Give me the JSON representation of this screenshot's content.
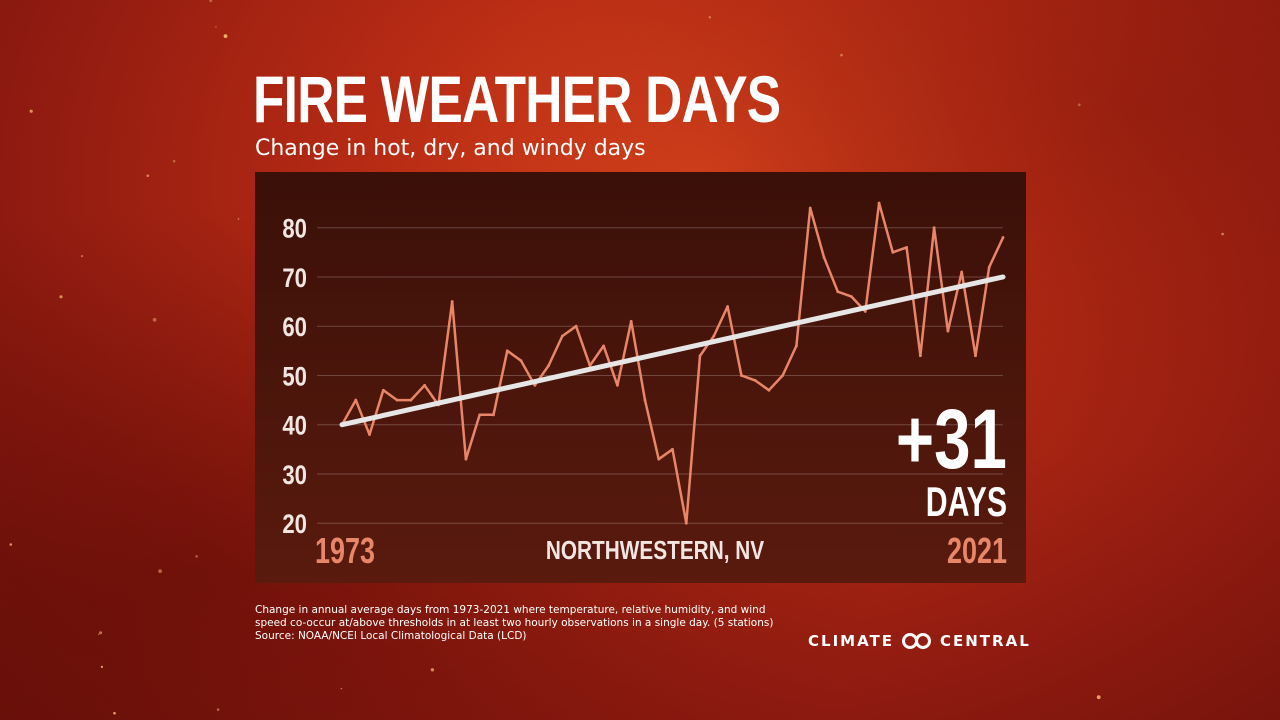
{
  "title": "FIRE WEATHER DAYS",
  "subtitle": "Change in hot, dry, and windy days",
  "colors": {
    "panel_top": "#3a1008",
    "panel_bottom": "#5a1a0e",
    "series_line": "#e8866a",
    "trend_line": "#e6e6e6",
    "year_label": "#e8866a",
    "text": "#ffffff"
  },
  "chart_data": {
    "type": "line",
    "title": "FIRE WEATHER DAYS",
    "subtitle": "Change in hot, dry, and windy days",
    "location": "NORTHWESTERN, NV",
    "x_start_label": "1973",
    "x_end_label": "2021",
    "xlim": [
      1973,
      2021
    ],
    "ylim": [
      20,
      85
    ],
    "yticks": [
      20,
      30,
      40,
      50,
      60,
      70,
      80
    ],
    "grid": true,
    "x": [
      1973,
      1974,
      1975,
      1976,
      1977,
      1978,
      1979,
      1980,
      1981,
      1982,
      1983,
      1984,
      1985,
      1986,
      1987,
      1988,
      1989,
      1990,
      1991,
      1992,
      1993,
      1994,
      1995,
      1996,
      1997,
      1998,
      1999,
      2000,
      2001,
      2002,
      2003,
      2004,
      2005,
      2006,
      2007,
      2008,
      2009,
      2010,
      2011,
      2012,
      2013,
      2014,
      2015,
      2016,
      2017,
      2018,
      2019,
      2020,
      2021
    ],
    "series": [
      {
        "values": [
          40,
          45,
          38,
          47,
          45,
          45,
          48,
          44,
          65,
          33,
          42,
          42,
          55,
          53,
          48,
          52,
          58,
          60,
          52,
          56,
          48,
          61,
          45,
          33,
          35,
          20,
          54,
          58,
          64,
          50,
          49,
          47,
          50,
          56,
          84,
          74,
          67,
          66,
          63,
          85,
          75,
          76,
          54,
          80,
          59,
          71,
          54,
          72,
          78
        ]
      }
    ],
    "trend": {
      "values": [
        40,
        70
      ]
    },
    "annotation": {
      "value": "+31",
      "unit": "DAYS"
    }
  },
  "caption": {
    "lines": [
      "Change in annual average days from 1973-2021 where temperature, relative humidity, and wind",
      "speed co-occur at/above thresholds in at least two hourly observations in a single day. (5 stations)",
      "Source: NOAA/NCEI Local Climatological Data (LCD)"
    ]
  },
  "logo": {
    "left": "CLIMATE",
    "right": "CENTRAL"
  }
}
